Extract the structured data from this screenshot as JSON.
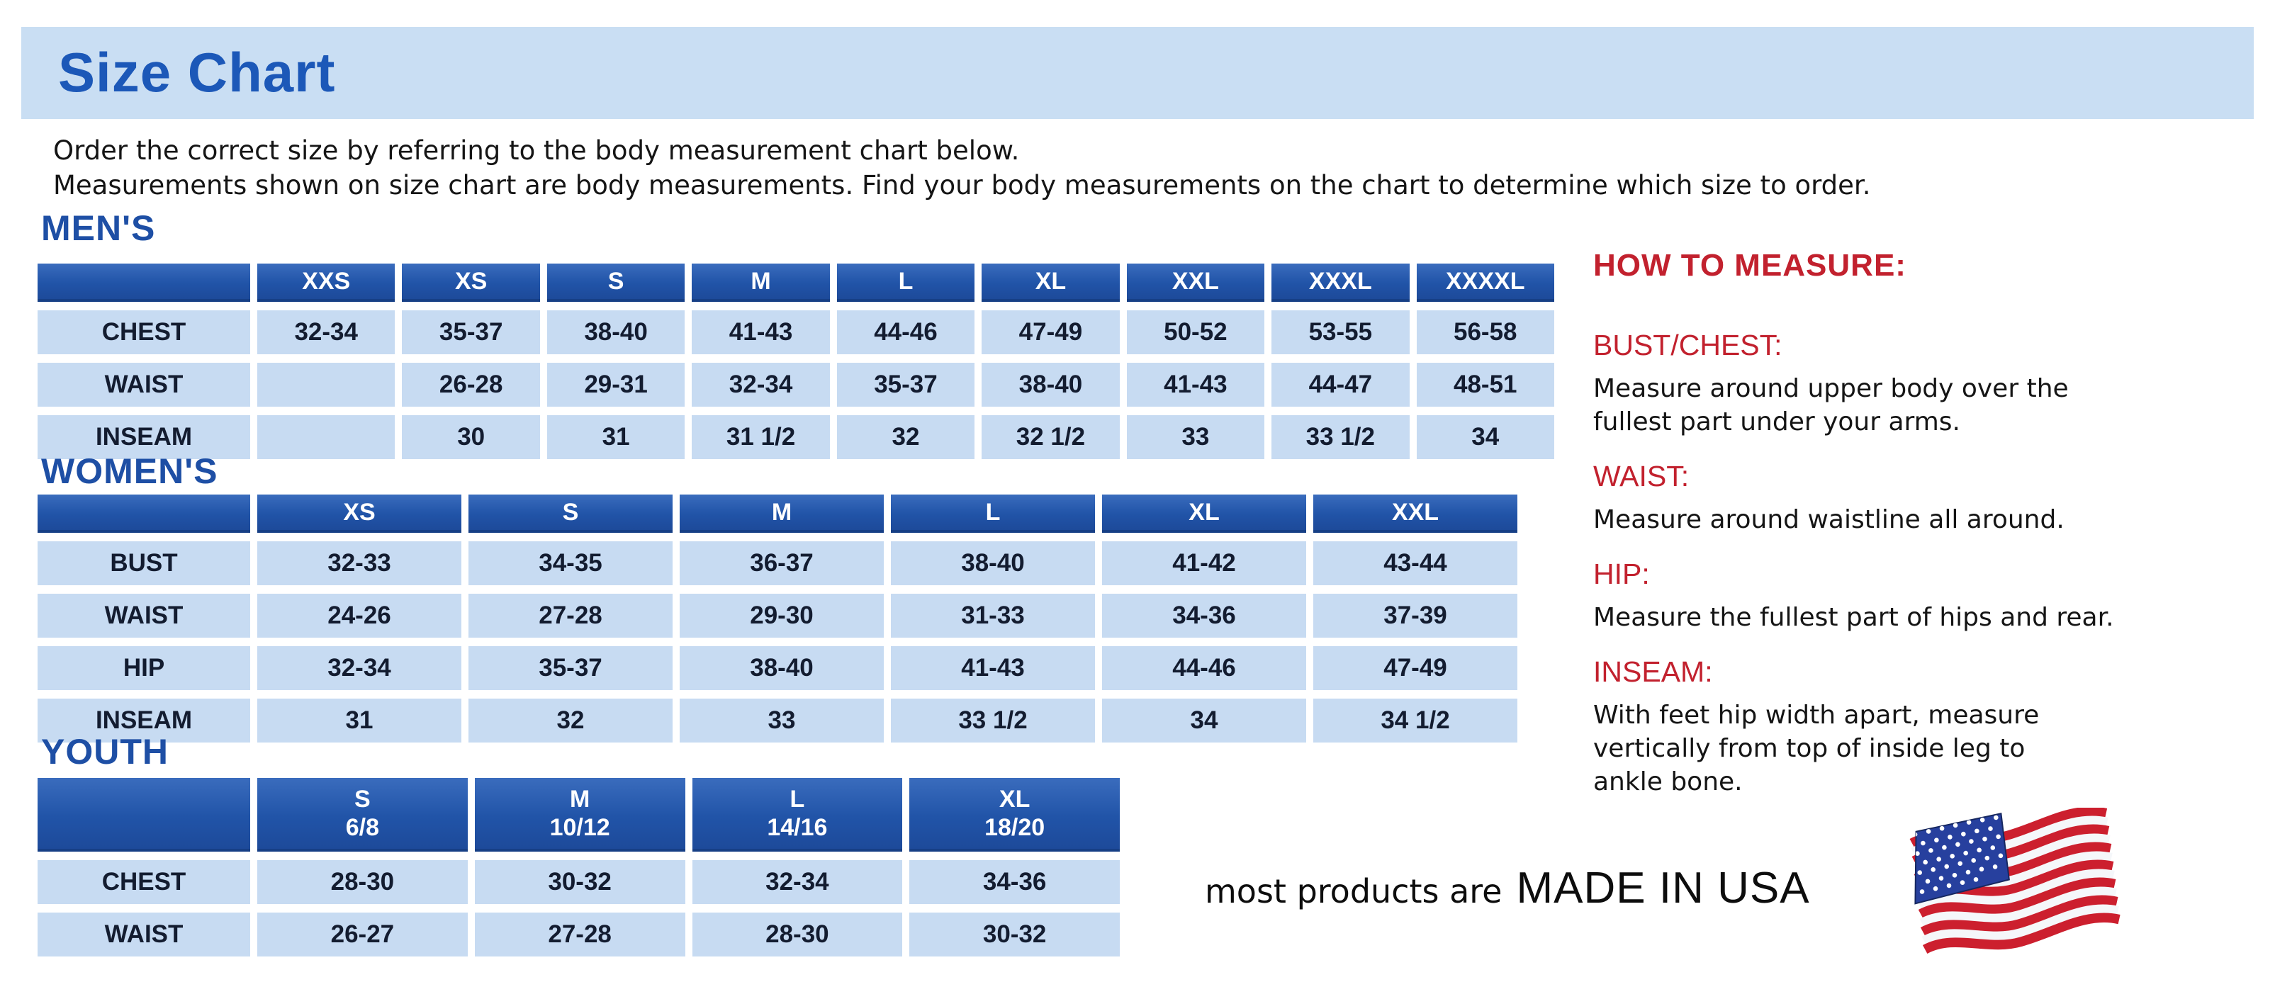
{
  "banner": {
    "title": "Size Chart"
  },
  "intro": {
    "line1": "Order the correct size by referring to the body measurement chart below.",
    "line2": "Measurements shown on size chart are body measurements.  Find your body measurements on the chart to determine which size to order."
  },
  "tables": [
    {
      "title": "MEN'S",
      "columns": [
        {
          "size": "XXS"
        },
        {
          "size": "XS"
        },
        {
          "size": "S"
        },
        {
          "size": "M"
        },
        {
          "size": "L"
        },
        {
          "size": "XL"
        },
        {
          "size": "XXL"
        },
        {
          "size": "XXXL"
        },
        {
          "size": "XXXXL"
        }
      ],
      "rows": [
        {
          "label": "CHEST",
          "values": [
            "32-34",
            "35-37",
            "38-40",
            "41-43",
            "44-46",
            "47-49",
            "50-52",
            "53-55",
            "56-58"
          ]
        },
        {
          "label": "WAIST",
          "values": [
            "",
            "26-28",
            "29-31",
            "32-34",
            "35-37",
            "38-40",
            "41-43",
            "44-47",
            "48-51"
          ]
        },
        {
          "label": "INSEAM",
          "values": [
            "",
            "30",
            "31",
            "31 1/2",
            "32",
            "32 1/2",
            "33",
            "33 1/2",
            "34"
          ]
        }
      ]
    },
    {
      "title": "WOMEN'S",
      "columns": [
        {
          "size": "XS"
        },
        {
          "size": "S"
        },
        {
          "size": "M"
        },
        {
          "size": "L"
        },
        {
          "size": "XL"
        },
        {
          "size": "XXL"
        }
      ],
      "rows": [
        {
          "label": "BUST",
          "values": [
            "32-33",
            "34-35",
            "36-37",
            "38-40",
            "41-42",
            "43-44"
          ]
        },
        {
          "label": "WAIST",
          "values": [
            "24-26",
            "27-28",
            "29-30",
            "31-33",
            "34-36",
            "37-39"
          ]
        },
        {
          "label": "HIP",
          "values": [
            "32-34",
            "35-37",
            "38-40",
            "41-43",
            "44-46",
            "47-49"
          ]
        },
        {
          "label": "INSEAM",
          "values": [
            "31",
            "32",
            "33",
            "33 1/2",
            "34",
            "34 1/2"
          ]
        }
      ]
    },
    {
      "title": "YOUTH",
      "columns": [
        {
          "size": "S",
          "range": "6/8"
        },
        {
          "size": "M",
          "range": "10/12"
        },
        {
          "size": "L",
          "range": "14/16"
        },
        {
          "size": "XL",
          "range": "18/20"
        }
      ],
      "rows": [
        {
          "label": "CHEST",
          "values": [
            "28-30",
            "30-32",
            "32-34",
            "34-36"
          ]
        },
        {
          "label": "WAIST",
          "values": [
            "26-27",
            "27-28",
            "28-30",
            "30-32"
          ]
        }
      ]
    }
  ],
  "how_to_measure": {
    "heading": "HOW TO MEASURE:",
    "items": [
      {
        "label": "BUST/CHEST:",
        "text": "Measure around upper body over the\nfullest part under your arms."
      },
      {
        "label": "WAIST:",
        "text": "Measure around waistline all around."
      },
      {
        "label": "HIP:",
        "text": "Measure the fullest part of hips and rear."
      },
      {
        "label": "INSEAM:",
        "text": "With feet hip width apart, measure\nvertically from top of inside leg to\nankle bone."
      }
    ]
  },
  "footer": {
    "prefix": "most products are",
    "made_in": "MADE IN USA",
    "flag_icon": "usa-flag-icon"
  },
  "colors": {
    "header_blue": "#2154a8",
    "cell_blue": "#c7dbf2",
    "banner_blue": "#c9def3",
    "title_blue": "#1c58b8",
    "section_blue": "#1e4fa5",
    "accent_red": "#c2212e",
    "cell_text": "#131c30",
    "flag_red": "#cc1f2e",
    "flag_canton_blue": "#27409e"
  }
}
